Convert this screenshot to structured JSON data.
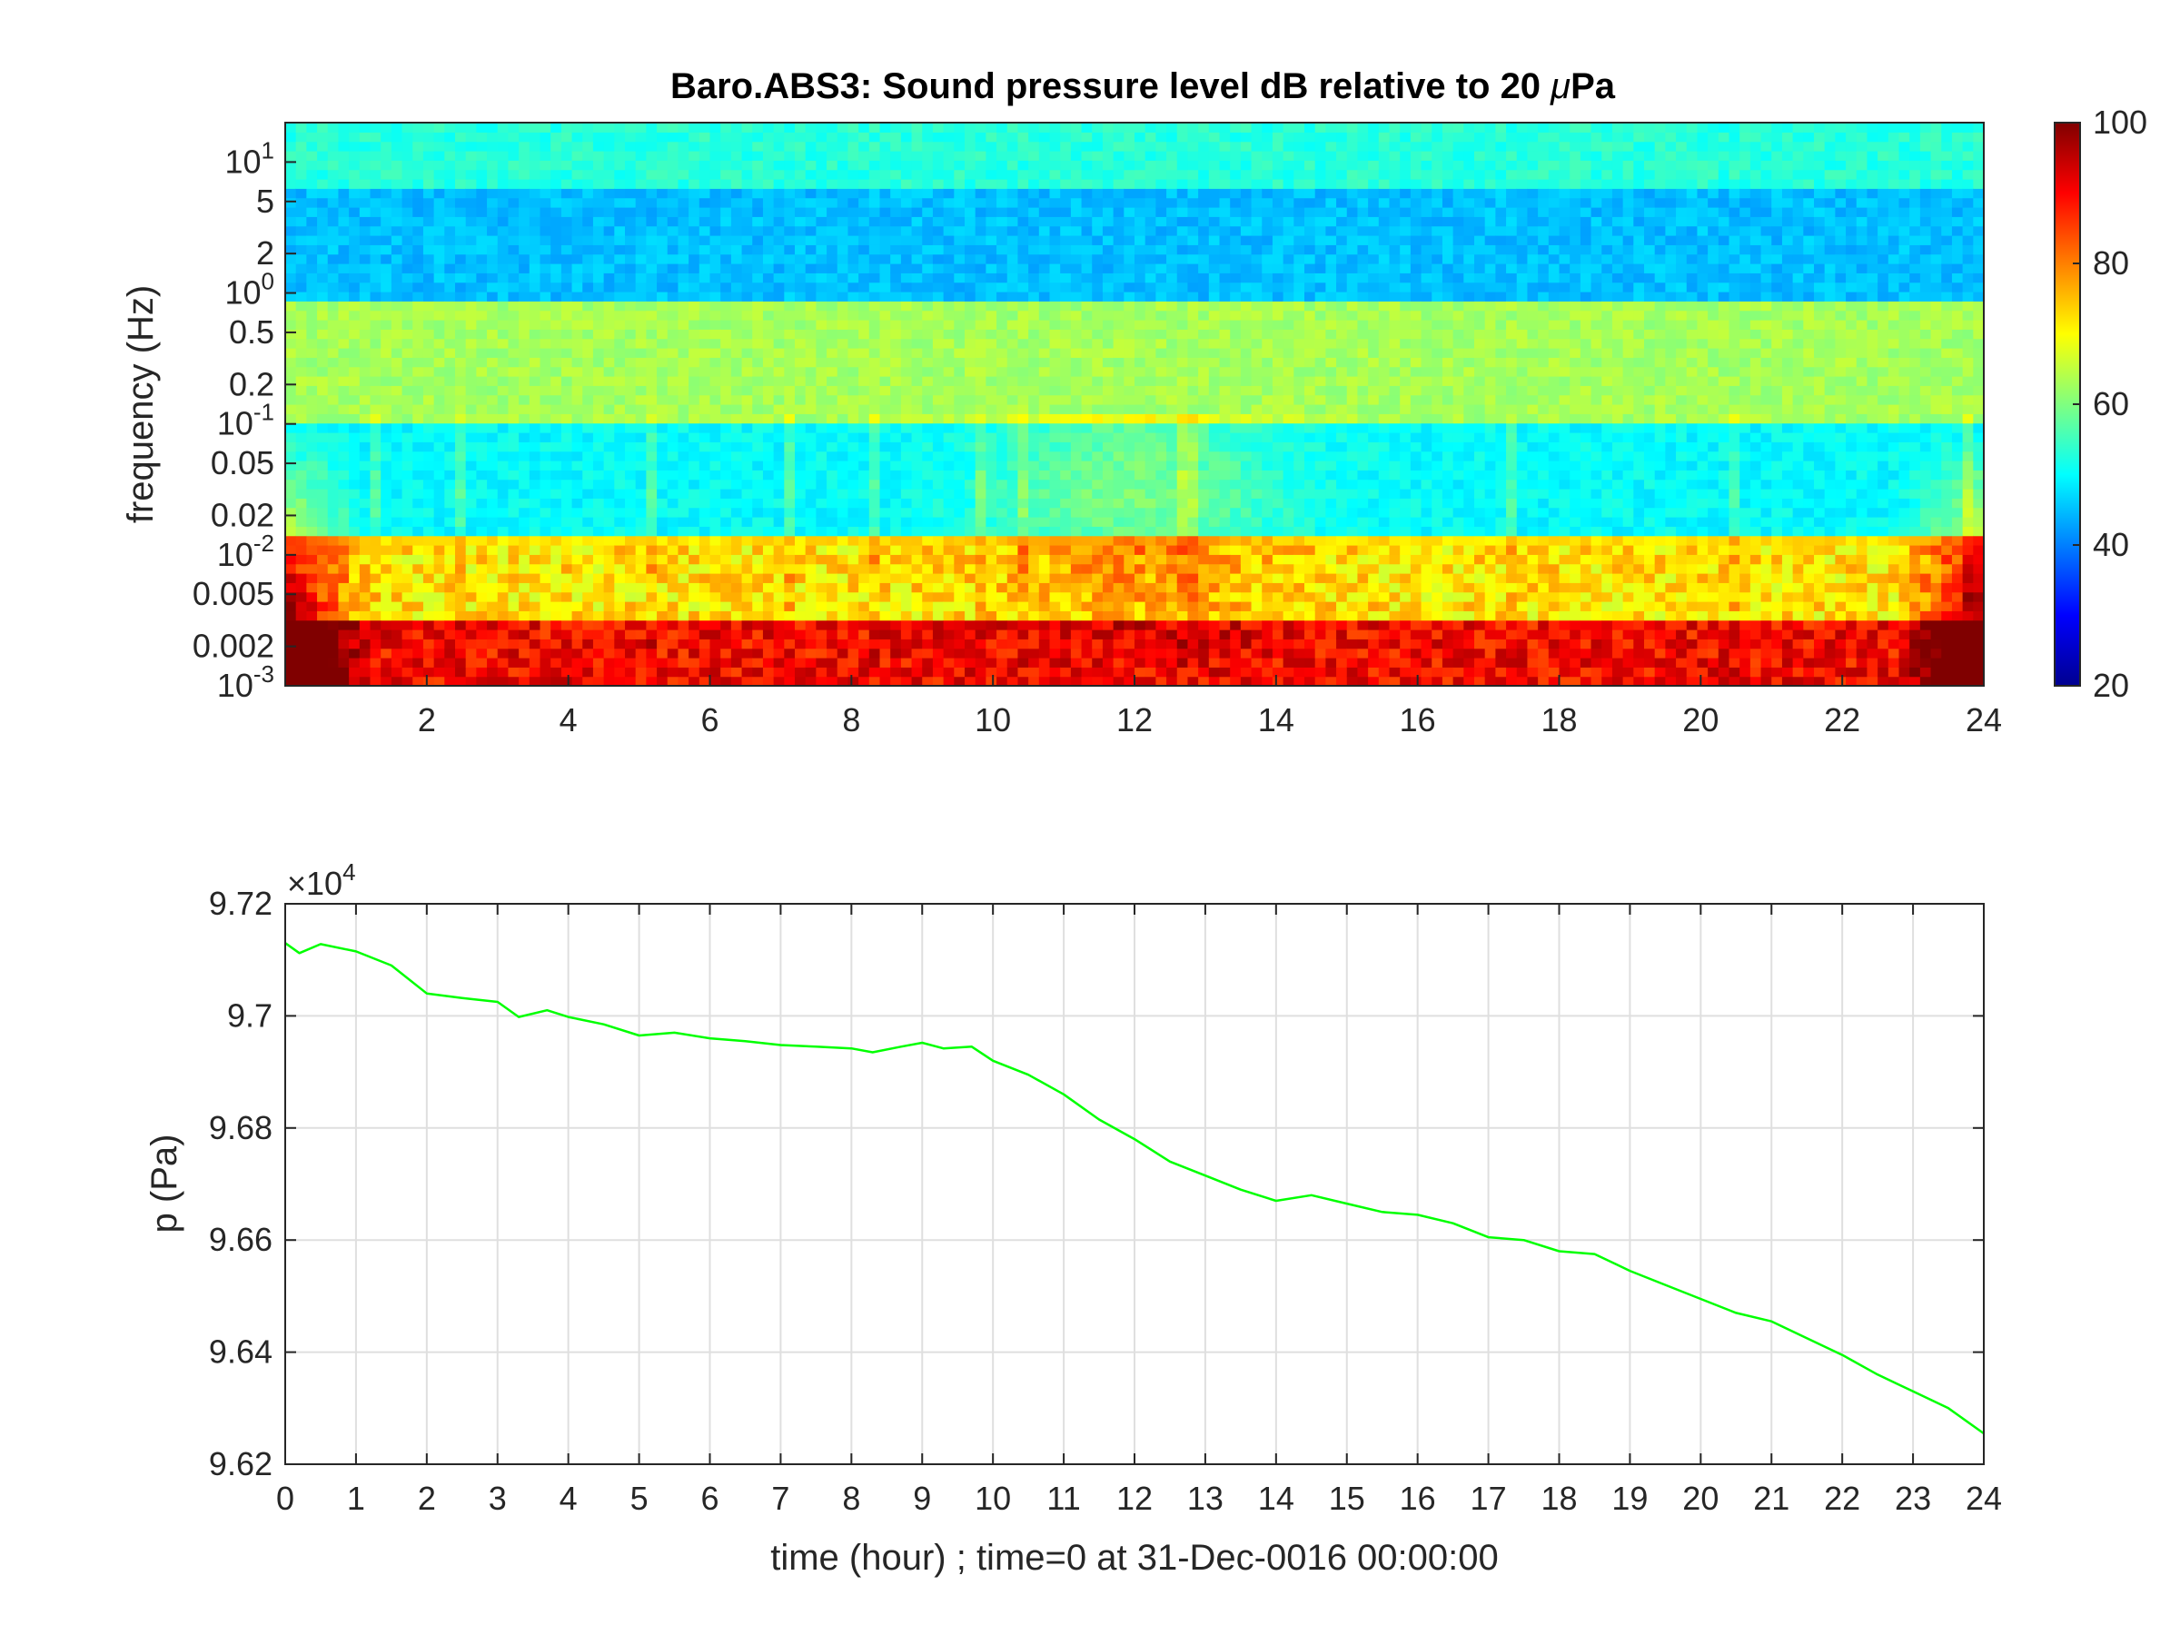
{
  "chart_data": [
    {
      "type": "heatmap",
      "title": "Baro.ABS3: Sound pressure level dB relative to 20 μPa",
      "title_parts": [
        "Baro.ABS3: Sound pressure level dB relative to 20 ",
        "μ",
        "Pa"
      ],
      "xlabel": "",
      "ylabel": "frequency (Hz)",
      "xlim": [
        0,
        24
      ],
      "ylim": [
        0.001,
        20
      ],
      "yscale": "log",
      "x_ticks": [
        2,
        4,
        6,
        8,
        10,
        12,
        14,
        16,
        18,
        20,
        22,
        24
      ],
      "x_tick_labels": [
        "2",
        "4",
        "6",
        "8",
        "10",
        "12",
        "14",
        "16",
        "18",
        "20",
        "22",
        "24"
      ],
      "y_ticks": [
        {
          "value": 10,
          "base": "10",
          "exp": "1"
        },
        {
          "value": 5,
          "text": "5"
        },
        {
          "value": 2,
          "text": "2"
        },
        {
          "value": 1,
          "base": "10",
          "exp": "0"
        },
        {
          "value": 0.5,
          "text": "0.5"
        },
        {
          "value": 0.2,
          "text": "0.2"
        },
        {
          "value": 0.1,
          "base": "10",
          "exp": "-1"
        },
        {
          "value": 0.05,
          "text": "0.05"
        },
        {
          "value": 0.02,
          "text": "0.02"
        },
        {
          "value": 0.01,
          "base": "10",
          "exp": "-2"
        },
        {
          "value": 0.005,
          "text": "0.005"
        },
        {
          "value": 0.002,
          "text": "0.002"
        },
        {
          "value": 0.001,
          "base": "10",
          "exp": "-3"
        }
      ],
      "colormap": "jet",
      "clim": [
        20,
        100
      ],
      "colorbar_ticks": [
        20,
        40,
        60,
        80,
        100
      ],
      "colorbar_tick_labels": [
        "20",
        "40",
        "60",
        "80",
        "100"
      ],
      "frequency_band_levels_db": [
        {
          "f_min": 10,
          "f_max": 20,
          "level": 53
        },
        {
          "f_min": 1.5,
          "f_max": 6,
          "level": 45
        },
        {
          "f_min": 0.15,
          "f_max": 0.4,
          "level": 63
        },
        {
          "f_min": 0.015,
          "f_max": 0.1,
          "level": 50
        },
        {
          "f_min": 0.005,
          "f_max": 0.01,
          "level": 72
        },
        {
          "f_min": 0.001,
          "f_max": 0.002,
          "level": 90
        }
      ]
    },
    {
      "type": "line",
      "title": "",
      "xlabel": "time (hour) ; time=0 at 31-Dec-0016 00:00:00",
      "ylabel": "p (Pa)",
      "xlim": [
        0,
        24
      ],
      "ylim": [
        96200,
        97200
      ],
      "y_multiplier_base": "×10",
      "y_multiplier_exp": "4",
      "x_ticks": [
        0,
        1,
        2,
        3,
        4,
        5,
        6,
        7,
        8,
        9,
        10,
        11,
        12,
        13,
        14,
        15,
        16,
        17,
        18,
        19,
        20,
        21,
        22,
        23,
        24
      ],
      "x_tick_labels": [
        "0",
        "1",
        "2",
        "3",
        "4",
        "5",
        "6",
        "7",
        "8",
        "9",
        "10",
        "11",
        "12",
        "13",
        "14",
        "15",
        "16",
        "17",
        "18",
        "19",
        "20",
        "21",
        "22",
        "23",
        "24"
      ],
      "y_ticks": [
        96200,
        96400,
        96600,
        96800,
        97000,
        97200
      ],
      "y_tick_labels": [
        "9.62",
        "9.64",
        "9.66",
        "9.68",
        "9.7",
        "9.72"
      ],
      "grid": true,
      "series": [
        {
          "color": "#00ff00",
          "x": [
            0,
            0.2,
            0.5,
            1.0,
            1.5,
            2.0,
            2.5,
            3.0,
            3.3,
            3.7,
            4.0,
            4.5,
            5.0,
            5.5,
            6.0,
            6.5,
            7.0,
            7.5,
            8.0,
            8.3,
            8.7,
            9.0,
            9.3,
            9.7,
            10.0,
            10.5,
            11.0,
            11.5,
            12.0,
            12.5,
            13.0,
            13.5,
            14.0,
            14.5,
            15.0,
            15.5,
            16.0,
            16.5,
            17.0,
            17.5,
            18.0,
            18.5,
            19.0,
            19.5,
            20.0,
            20.5,
            21.0,
            21.5,
            22.0,
            22.5,
            23.0,
            23.5,
            24.0
          ],
          "y": [
            97130,
            97112,
            97128,
            97115,
            97090,
            97040,
            97032,
            97025,
            96998,
            97010,
            96998,
            96985,
            96965,
            96970,
            96960,
            96955,
            96948,
            96945,
            96942,
            96935,
            96945,
            96952,
            96942,
            96945,
            96920,
            96895,
            96860,
            96815,
            96780,
            96740,
            96715,
            96690,
            96670,
            96680,
            96665,
            96650,
            96645,
            96630,
            96605,
            96600,
            96580,
            96575,
            96545,
            96520,
            96495,
            96470,
            96455,
            96425,
            96395,
            96360,
            96330,
            96300,
            96255
          ]
        }
      ]
    }
  ]
}
